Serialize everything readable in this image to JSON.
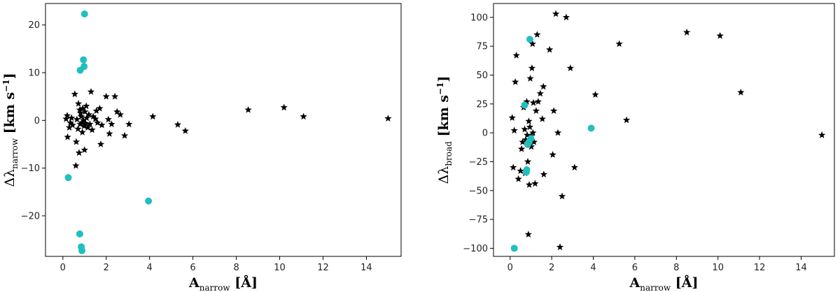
{
  "chart_data": [
    {
      "type": "scatter",
      "xlabel": {
        "main": "A",
        "sub": "narrow",
        "unit": "[Å]"
      },
      "ylabel": {
        "main": "Δλ",
        "sub": "narrow",
        "unit": "[km s",
        "exp": "−1",
        "close": "]"
      },
      "xlim": [
        -0.8,
        15.6
      ],
      "ylim": [
        -28.5,
        24.5
      ],
      "xticks": [
        0,
        2,
        4,
        6,
        8,
        10,
        12,
        14
      ],
      "yticks": [
        -20,
        -10,
        0,
        10,
        20
      ],
      "grid": false,
      "series": [
        {
          "marker": "star",
          "color": "#000000",
          "points": [
            [
              0.15,
              0.3
            ],
            [
              0.2,
              1.0
            ],
            [
              0.22,
              -3.5
            ],
            [
              0.3,
              -1.5
            ],
            [
              0.35,
              -0.5
            ],
            [
              0.4,
              0.5
            ],
            [
              0.45,
              -1.0
            ],
            [
              0.55,
              5.5
            ],
            [
              0.6,
              -9.5
            ],
            [
              0.62,
              -4.5
            ],
            [
              0.65,
              0.2
            ],
            [
              0.7,
              -1.8
            ],
            [
              0.72,
              3.5
            ],
            [
              0.75,
              -6.8
            ],
            [
              0.78,
              2.2
            ],
            [
              0.8,
              -0.8
            ],
            [
              0.82,
              1.5
            ],
            [
              0.85,
              0.8
            ],
            [
              0.88,
              -0.5
            ],
            [
              0.9,
              -2.5
            ],
            [
              0.92,
              2.5
            ],
            [
              0.95,
              0.0
            ],
            [
              0.98,
              -1.2
            ],
            [
              1.0,
              -6.2
            ],
            [
              1.02,
              1.8
            ],
            [
              1.05,
              -0.6
            ],
            [
              1.08,
              3.0
            ],
            [
              1.1,
              0.5
            ],
            [
              1.15,
              -1.5
            ],
            [
              1.2,
              1.2
            ],
            [
              1.25,
              -0.8
            ],
            [
              1.3,
              6.0
            ],
            [
              1.35,
              -2.0
            ],
            [
              1.4,
              0.8
            ],
            [
              1.5,
              0.3
            ],
            [
              1.55,
              2.0
            ],
            [
              1.6,
              -0.5
            ],
            [
              1.7,
              2.5
            ],
            [
              1.75,
              -5.0
            ],
            [
              1.8,
              -1.0
            ],
            [
              2.0,
              5.0
            ],
            [
              2.1,
              0.2
            ],
            [
              2.15,
              -2.8
            ],
            [
              2.25,
              -0.8
            ],
            [
              2.4,
              5.0
            ],
            [
              2.5,
              1.8
            ],
            [
              2.65,
              1.2
            ],
            [
              2.85,
              -3.2
            ],
            [
              3.05,
              -0.8
            ],
            [
              4.15,
              0.8
            ],
            [
              5.3,
              -0.9
            ],
            [
              5.65,
              -2.2
            ],
            [
              8.55,
              2.2
            ],
            [
              10.2,
              2.7
            ],
            [
              11.1,
              0.8
            ],
            [
              15.0,
              0.4
            ]
          ]
        },
        {
          "marker": "circle",
          "color": "#21bfbf",
          "points": [
            [
              1.0,
              22.3
            ],
            [
              0.95,
              12.7
            ],
            [
              0.98,
              11.3
            ],
            [
              0.8,
              10.5
            ],
            [
              0.25,
              -12.0
            ],
            [
              3.95,
              -16.9
            ],
            [
              0.78,
              -23.8
            ],
            [
              0.85,
              -26.5
            ],
            [
              0.88,
              -27.3
            ]
          ]
        }
      ]
    },
    {
      "type": "scatter",
      "xlabel": {
        "main": "A",
        "sub": "narrow",
        "unit": "[Å]"
      },
      "ylabel": {
        "main": "Δλ",
        "sub": "broad",
        "unit": "[km s",
        "exp": "−1",
        "close": "]"
      },
      "xlim": [
        -0.8,
        15.6
      ],
      "ylim": [
        -107,
        112
      ],
      "xticks": [
        0,
        2,
        4,
        6,
        8,
        10,
        12,
        14
      ],
      "yticks": [
        -100,
        -75,
        -50,
        -25,
        0,
        25,
        50,
        75,
        100
      ],
      "grid": false,
      "series": [
        {
          "marker": "star",
          "color": "#000000",
          "points": [
            [
              0.1,
              13
            ],
            [
              0.15,
              -30
            ],
            [
              0.2,
              2
            ],
            [
              0.25,
              44
            ],
            [
              0.3,
              67
            ],
            [
              0.4,
              -40
            ],
            [
              0.5,
              -33
            ],
            [
              0.55,
              -14
            ],
            [
              0.6,
              -8
            ],
            [
              0.65,
              22
            ],
            [
              0.7,
              3
            ],
            [
              0.72,
              -35
            ],
            [
              0.75,
              -6
            ],
            [
              0.8,
              27
            ],
            [
              0.82,
              -2
            ],
            [
              0.85,
              -25
            ],
            [
              0.88,
              -88
            ],
            [
              0.9,
              10
            ],
            [
              0.92,
              -45
            ],
            [
              0.95,
              5
            ],
            [
              0.97,
              47
            ],
            [
              1.0,
              -3
            ],
            [
              1.02,
              -12
            ],
            [
              1.05,
              56
            ],
            [
              1.08,
              77
            ],
            [
              1.1,
              0
            ],
            [
              1.12,
              26
            ],
            [
              1.15,
              -8
            ],
            [
              1.2,
              -44
            ],
            [
              1.25,
              19
            ],
            [
              1.3,
              85
            ],
            [
              1.35,
              27
            ],
            [
              1.45,
              34
            ],
            [
              1.55,
              12
            ],
            [
              1.6,
              40
            ],
            [
              1.62,
              -36
            ],
            [
              1.9,
              72
            ],
            [
              2.05,
              -19
            ],
            [
              2.1,
              19
            ],
            [
              2.2,
              103
            ],
            [
              2.3,
              0
            ],
            [
              2.4,
              -99
            ],
            [
              2.5,
              -55
            ],
            [
              2.7,
              100
            ],
            [
              2.9,
              56
            ],
            [
              3.1,
              -30
            ],
            [
              4.1,
              33
            ],
            [
              5.25,
              77
            ],
            [
              5.6,
              11
            ],
            [
              8.5,
              87
            ],
            [
              10.1,
              84
            ],
            [
              11.1,
              35
            ],
            [
              15.0,
              -2
            ]
          ]
        },
        {
          "marker": "circle",
          "color": "#21bfbf",
          "points": [
            [
              0.95,
              81
            ],
            [
              0.7,
              24
            ],
            [
              1.0,
              -5
            ],
            [
              0.9,
              -8
            ],
            [
              0.85,
              -10
            ],
            [
              0.8,
              -32
            ],
            [
              0.78,
              -34
            ],
            [
              3.9,
              4
            ],
            [
              0.2,
              -100
            ]
          ]
        }
      ]
    }
  ]
}
